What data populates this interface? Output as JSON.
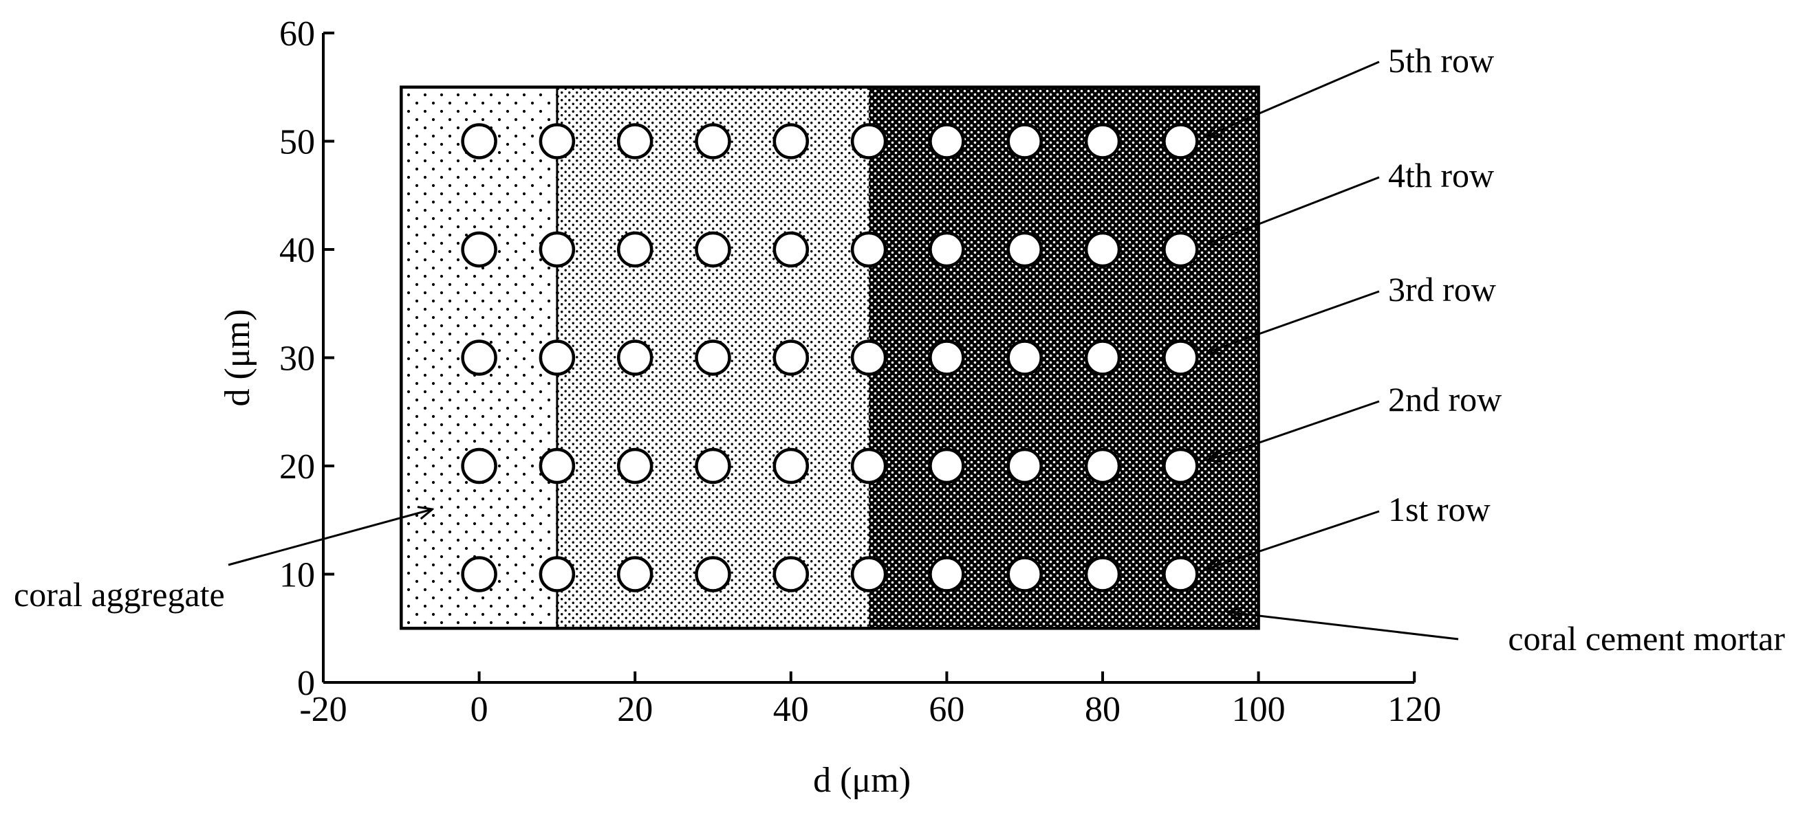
{
  "chart_data": {
    "type": "scatter",
    "xlabel": "d (μm)",
    "ylabel": "d (μm)",
    "xlim": [
      -20,
      120
    ],
    "ylim": [
      0,
      60
    ],
    "xticks": [
      "-20",
      "0",
      "20",
      "40",
      "60",
      "80",
      "100",
      "120"
    ],
    "yticks": [
      "0",
      "10",
      "20",
      "30",
      "40",
      "50",
      "60"
    ],
    "grid": false,
    "x": [
      0,
      10,
      20,
      30,
      40,
      50,
      60,
      70,
      80,
      90
    ],
    "rows": [
      {
        "name": "1st row",
        "y": 10
      },
      {
        "name": "2nd row",
        "y": 20
      },
      {
        "name": "3rd row",
        "y": 30
      },
      {
        "name": "4th row",
        "y": 40
      },
      {
        "name": "5th row",
        "y": 50
      }
    ],
    "regions": [
      {
        "x": [
          -10,
          10
        ],
        "y": [
          5,
          55
        ],
        "shade": "sparse-dots"
      },
      {
        "x": [
          10,
          50
        ],
        "y": [
          5,
          55
        ],
        "shade": "medium-dots"
      },
      {
        "x": [
          50,
          100
        ],
        "y": [
          5,
          55
        ],
        "shade": "dense-dots"
      }
    ],
    "interface_line_x": 10,
    "annotations": [
      {
        "label": "coral aggregate",
        "points_to": [
          -6,
          16
        ]
      },
      {
        "label": "coral cement mortar",
        "points_to": [
          96,
          6.5
        ]
      }
    ]
  }
}
